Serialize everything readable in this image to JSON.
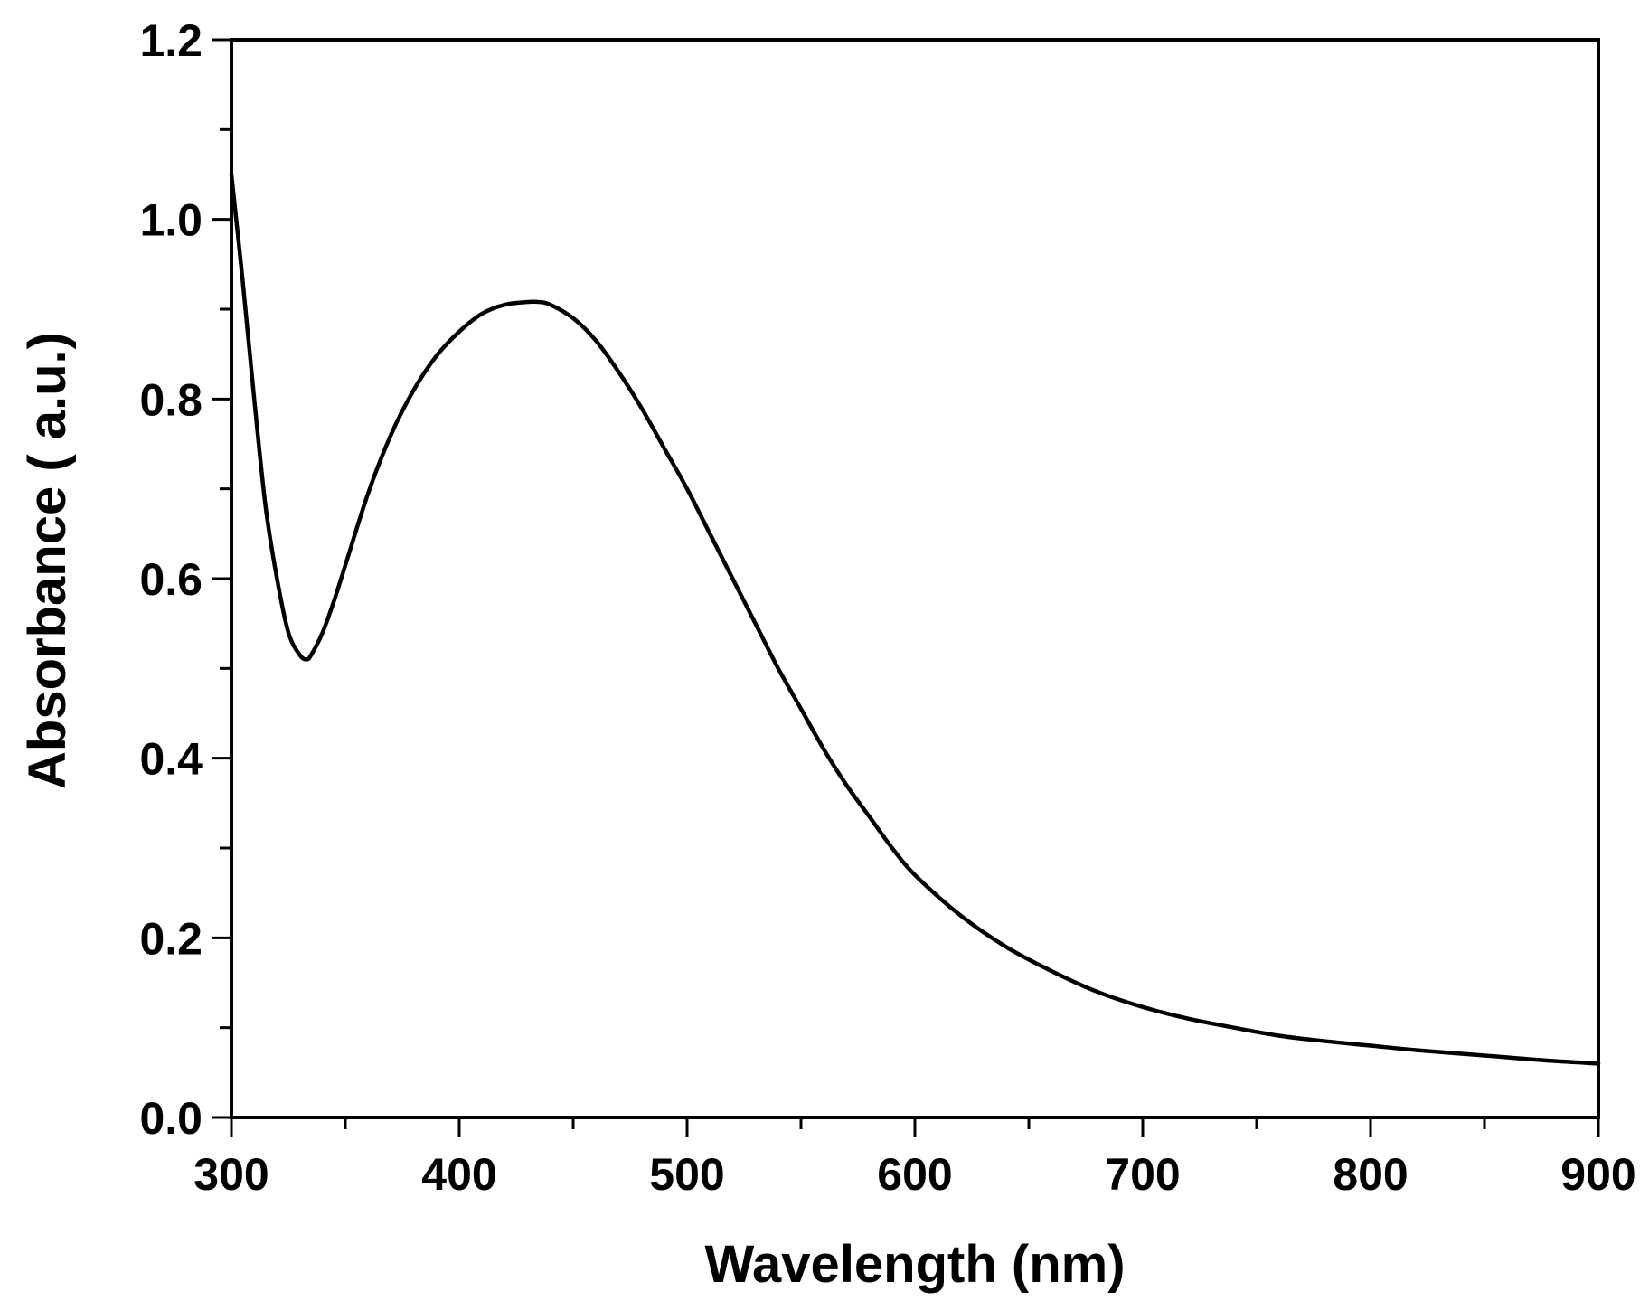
{
  "chart_data": {
    "type": "line",
    "title": "",
    "xlabel": "Wavelength (nm)",
    "ylabel": "Absorbance ( a.u.)",
    "xlim": [
      300,
      900
    ],
    "ylim": [
      0.0,
      1.2
    ],
    "x_ticks": [
      300,
      400,
      500,
      600,
      700,
      800,
      900
    ],
    "x_tick_labels": [
      "300",
      "400",
      "500",
      "600",
      "700",
      "800",
      "900"
    ],
    "y_ticks": [
      0.0,
      0.2,
      0.4,
      0.6,
      0.8,
      1.0,
      1.2
    ],
    "y_tick_labels": [
      "0.0",
      "0.2",
      "0.4",
      "0.6",
      "0.8",
      "1.0",
      "1.2"
    ],
    "x_minor_step": 50,
    "y_minor_step": 0.1,
    "grid": false,
    "legend": "none",
    "line_color": "#000000",
    "series": [
      {
        "x": [
          300,
          305,
          310,
          315,
          320,
          325,
          330,
          333,
          335,
          340,
          345,
          350,
          360,
          370,
          380,
          390,
          400,
          410,
          420,
          430,
          435,
          440,
          450,
          460,
          470,
          480,
          490,
          500,
          510,
          520,
          530,
          540,
          550,
          560,
          570,
          580,
          590,
          600,
          620,
          640,
          660,
          680,
          700,
          720,
          740,
          760,
          780,
          800,
          820,
          840,
          860,
          880,
          900
        ],
        "y": [
          1.05,
          0.93,
          0.8,
          0.68,
          0.6,
          0.54,
          0.515,
          0.51,
          0.515,
          0.54,
          0.575,
          0.615,
          0.695,
          0.76,
          0.81,
          0.848,
          0.875,
          0.895,
          0.905,
          0.908,
          0.908,
          0.905,
          0.89,
          0.865,
          0.83,
          0.79,
          0.745,
          0.7,
          0.65,
          0.6,
          0.55,
          0.5,
          0.455,
          0.41,
          0.37,
          0.335,
          0.3,
          0.27,
          0.225,
          0.19,
          0.163,
          0.14,
          0.123,
          0.11,
          0.1,
          0.091,
          0.085,
          0.08,
          0.075,
          0.071,
          0.067,
          0.063,
          0.06
        ]
      }
    ]
  }
}
